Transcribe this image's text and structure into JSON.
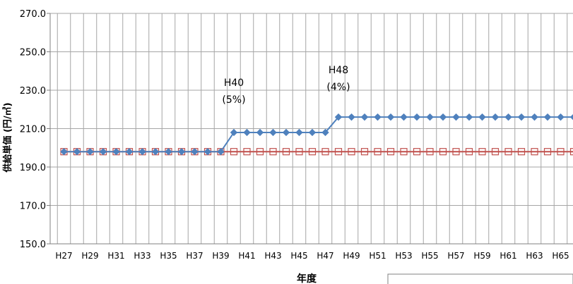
{
  "chart_data": {
    "type": "line",
    "ylabel": "供給単価 (円/㎥)",
    "xlabel": "年度",
    "ylim": [
      150,
      270
    ],
    "y_ticks": [
      "150.0",
      "170.0",
      "190.0",
      "210.0",
      "230.0",
      "250.0",
      "270.0"
    ],
    "grid": true,
    "x": [
      "H27",
      "H28",
      "H29",
      "H30",
      "H31",
      "H32",
      "H33",
      "H34",
      "H35",
      "H36",
      "H37",
      "H38",
      "H39",
      "H40",
      "H41",
      "H42",
      "H43",
      "H44",
      "H45",
      "H46",
      "H47",
      "H48",
      "H49",
      "H50",
      "H51",
      "H52",
      "H53",
      "H54",
      "H55",
      "H56",
      "H57",
      "H58",
      "H59",
      "H60",
      "H61",
      "H62",
      "H63",
      "H64",
      "H65",
      "H66"
    ],
    "x_tick_labels": [
      "H27",
      "H29",
      "H31",
      "H33",
      "H35",
      "H37",
      "H39",
      "H41",
      "H43",
      "H45",
      "H47",
      "H49",
      "H51",
      "H53",
      "H55",
      "H57",
      "H59",
      "H61",
      "H63",
      "H65"
    ],
    "series": [
      {
        "color": "#4f81bd",
        "marker": "diamond",
        "values": [
          198,
          198,
          198,
          198,
          198,
          198,
          198,
          198,
          198,
          198,
          198,
          198,
          198,
          208,
          208,
          208,
          208,
          208,
          208,
          208,
          208,
          216,
          216,
          216,
          216,
          216,
          216,
          216,
          216,
          216,
          216,
          216,
          216,
          216,
          216,
          216,
          216,
          216,
          216,
          216
        ]
      },
      {
        "color": "#c0504d",
        "marker": "square-open",
        "values": [
          198,
          198,
          198,
          198,
          198,
          198,
          198,
          198,
          198,
          198,
          198,
          198,
          198,
          198,
          198,
          198,
          198,
          198,
          198,
          198,
          198,
          198,
          198,
          198,
          198,
          198,
          198,
          198,
          198,
          198,
          198,
          198,
          198,
          198,
          198,
          198,
          198,
          198,
          198,
          198
        ]
      }
    ],
    "annotations": [
      {
        "x": "H40",
        "lines": [
          "H40",
          "(5%)"
        ]
      },
      {
        "x": "H48",
        "lines": [
          "H48",
          "(4%)"
        ]
      }
    ]
  }
}
